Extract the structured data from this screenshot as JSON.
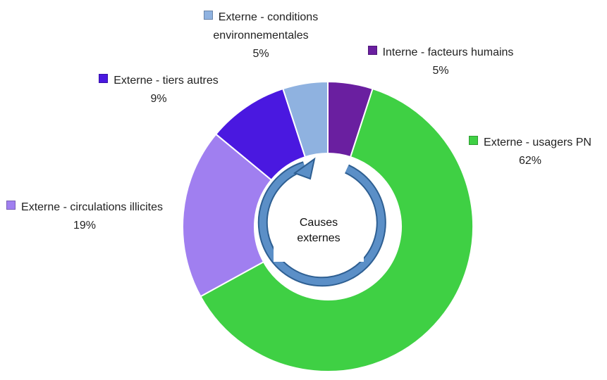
{
  "chart_data": {
    "type": "donut",
    "categories": [
      "Interne - facteurs humains",
      "Externe - usagers PN",
      "Externe - circulations illicites",
      "Externe - tiers autres",
      "Externe - conditions environnementales"
    ],
    "values": [
      5,
      62,
      19,
      9,
      5
    ],
    "value_labels": [
      "5%",
      "62%",
      "19%",
      "9%",
      "5%"
    ],
    "colors": [
      "#6a1fa0",
      "#3fd044",
      "#a07ff0",
      "#4a18e0",
      "#8fb2e0"
    ],
    "annotation": [
      "Causes",
      "externes"
    ]
  }
}
